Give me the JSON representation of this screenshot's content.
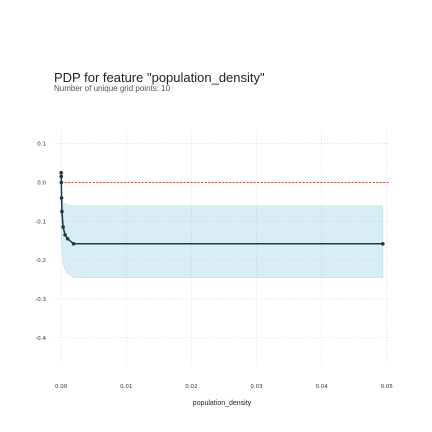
{
  "chart_data": {
    "type": "line",
    "title": "PDP for feature \"population_density\"",
    "subtitle": "Number of unique grid points: 10",
    "xlabel": "population_density",
    "ylabel": "",
    "xlim": [
      -0.0011,
      0.0505
    ],
    "ylim": [
      -0.47,
      0.135
    ],
    "x_ticks": [
      0.0,
      0.01,
      0.02,
      0.03,
      0.04,
      0.05
    ],
    "x_tick_labels": [
      "0.00",
      "0.01",
      "0.02",
      "0.03",
      "0.04",
      "0.05"
    ],
    "y_ticks": [
      0.1,
      0.0,
      -0.1,
      -0.2,
      -0.3,
      -0.4
    ],
    "y_tick_labels": [
      "0.1",
      "0.0",
      "-0.1",
      "-0.2",
      "-0.3",
      "-0.4"
    ],
    "grid": true,
    "reference_line": {
      "y": 0.0,
      "style": "dashed",
      "color": "#c0392b"
    },
    "series": [
      {
        "x": [
          0.0,
          1e-05,
          3e-05,
          6e-05,
          0.00012,
          0.0003,
          0.0006,
          0.001,
          0.0019,
          0.0494
        ],
        "values": [
          0.025,
          0.015,
          0.0,
          -0.04,
          -0.075,
          -0.115,
          -0.135,
          -0.145,
          -0.158,
          -0.158
        ],
        "band_upper": [
          0.03,
          0.02,
          0.01,
          -0.02,
          -0.04,
          -0.05,
          -0.055,
          -0.058,
          -0.06,
          -0.06
        ],
        "band_lower": [
          0.02,
          -0.02,
          -0.08,
          -0.14,
          -0.18,
          -0.21,
          -0.225,
          -0.235,
          -0.245,
          -0.245
        ],
        "color": "#1d3a4a",
        "band_color": "#7fc4dc"
      }
    ]
  }
}
